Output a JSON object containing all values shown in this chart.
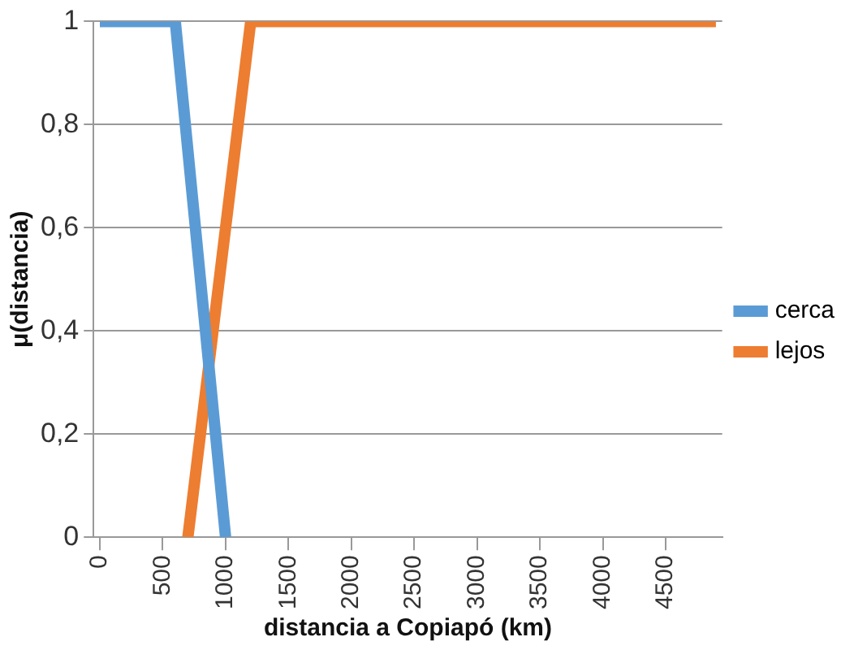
{
  "chart_data": {
    "type": "line",
    "xlabel": "distancia a Copiapó (km)",
    "ylabel": "μ(distancia)",
    "series": [
      {
        "name": "cerca",
        "color": "#5b9bd5",
        "x": [
          0,
          600,
          1000
        ],
        "values": [
          1,
          1,
          0
        ]
      },
      {
        "name": "lejos",
        "color": "#ed7d31",
        "x": [
          700,
          1200,
          4900
        ],
        "values": [
          0,
          1,
          1
        ]
      }
    ],
    "xlim": [
      -50,
      4950
    ],
    "xticks": [
      0,
      500,
      1000,
      1500,
      2000,
      2500,
      3000,
      3500,
      4000,
      4500
    ],
    "ylim": [
      0,
      1
    ],
    "yticks": [
      0,
      {
        "value": 0.2,
        "label": "0,2"
      },
      {
        "value": 0.4,
        "label": "0,4"
      },
      {
        "value": 0.6,
        "label": "0,6"
      },
      {
        "value": 0.8,
        "label": "0,8"
      },
      1
    ],
    "grid": "y",
    "legend": "right",
    "marker": "none",
    "line_style": "solid"
  }
}
